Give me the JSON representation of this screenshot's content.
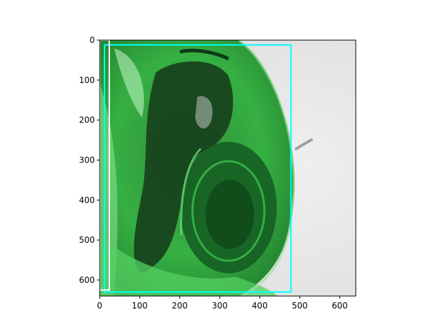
{
  "figure": {
    "image_description_icon": "green-glass-bottle-photo-icon",
    "image_extent": {
      "x": [
        0,
        640
      ],
      "y": [
        0,
        640
      ]
    },
    "x_ticks": [
      "0",
      "100",
      "200",
      "300",
      "400",
      "500",
      "600"
    ],
    "y_ticks": [
      "0",
      "100",
      "200",
      "300",
      "400",
      "500",
      "600"
    ],
    "boxes": [
      {
        "name": "cyan-box",
        "color": "#00ffff",
        "x0": 12,
        "y0": 12,
        "x1": 478,
        "y1": 630
      },
      {
        "name": "white-box",
        "color": "#ffffff",
        "x0": 0,
        "y0": 0,
        "x1": 24,
        "y1": 625
      }
    ],
    "colors": {
      "glass_dark": "#0f5a1e",
      "glass_mid": "#2fa83c",
      "glass_light": "#7ee08a",
      "background": "#e9e9e9"
    }
  }
}
